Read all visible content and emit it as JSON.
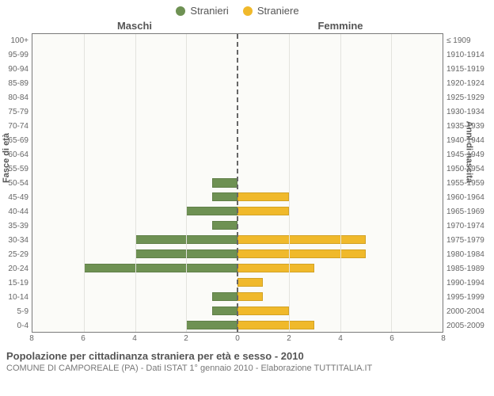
{
  "legend": {
    "male": {
      "label": "Stranieri",
      "color": "#6e9153"
    },
    "female": {
      "label": "Straniere",
      "color": "#f0b92b"
    }
  },
  "column_headers": {
    "left": "Maschi",
    "right": "Femmine"
  },
  "axis_titles": {
    "left": "Fasce di età",
    "right": "Anni di nascita"
  },
  "x": {
    "max": 8,
    "ticks": [
      8,
      6,
      4,
      2,
      0,
      2,
      4,
      6,
      8
    ]
  },
  "style": {
    "plot_bg": "#fbfbf8",
    "plot_border": "#7a7a7a",
    "grid_color": "#e3e3de",
    "center_dash_color": "#666666",
    "bar_height_pct": 62
  },
  "groups": [
    {
      "age": "100+",
      "birth": "≤ 1909",
      "m": 0,
      "f": 0
    },
    {
      "age": "95-99",
      "birth": "1910-1914",
      "m": 0,
      "f": 0
    },
    {
      "age": "90-94",
      "birth": "1915-1919",
      "m": 0,
      "f": 0
    },
    {
      "age": "85-89",
      "birth": "1920-1924",
      "m": 0,
      "f": 0
    },
    {
      "age": "80-84",
      "birth": "1925-1929",
      "m": 0,
      "f": 0
    },
    {
      "age": "75-79",
      "birth": "1930-1934",
      "m": 0,
      "f": 0
    },
    {
      "age": "70-74",
      "birth": "1935-1939",
      "m": 0,
      "f": 0
    },
    {
      "age": "65-69",
      "birth": "1940-1944",
      "m": 0,
      "f": 0
    },
    {
      "age": "60-64",
      "birth": "1945-1949",
      "m": 0,
      "f": 0
    },
    {
      "age": "55-59",
      "birth": "1950-1954",
      "m": 0,
      "f": 0
    },
    {
      "age": "50-54",
      "birth": "1955-1959",
      "m": 1,
      "f": 0
    },
    {
      "age": "45-49",
      "birth": "1960-1964",
      "m": 1,
      "f": 2
    },
    {
      "age": "40-44",
      "birth": "1965-1969",
      "m": 2,
      "f": 2
    },
    {
      "age": "35-39",
      "birth": "1970-1974",
      "m": 1,
      "f": 0
    },
    {
      "age": "30-34",
      "birth": "1975-1979",
      "m": 4,
      "f": 5
    },
    {
      "age": "25-29",
      "birth": "1980-1984",
      "m": 4,
      "f": 5
    },
    {
      "age": "20-24",
      "birth": "1985-1989",
      "m": 6,
      "f": 3
    },
    {
      "age": "15-19",
      "birth": "1990-1994",
      "m": 0,
      "f": 1
    },
    {
      "age": "10-14",
      "birth": "1995-1999",
      "m": 1,
      "f": 1
    },
    {
      "age": "5-9",
      "birth": "2000-2004",
      "m": 1,
      "f": 2
    },
    {
      "age": "0-4",
      "birth": "2005-2009",
      "m": 2,
      "f": 3
    }
  ],
  "caption": {
    "title": "Popolazione per cittadinanza straniera per età e sesso - 2010",
    "subtitle": "COMUNE DI CAMPOREALE (PA) - Dati ISTAT 1° gennaio 2010 - Elaborazione TUTTITALIA.IT"
  }
}
